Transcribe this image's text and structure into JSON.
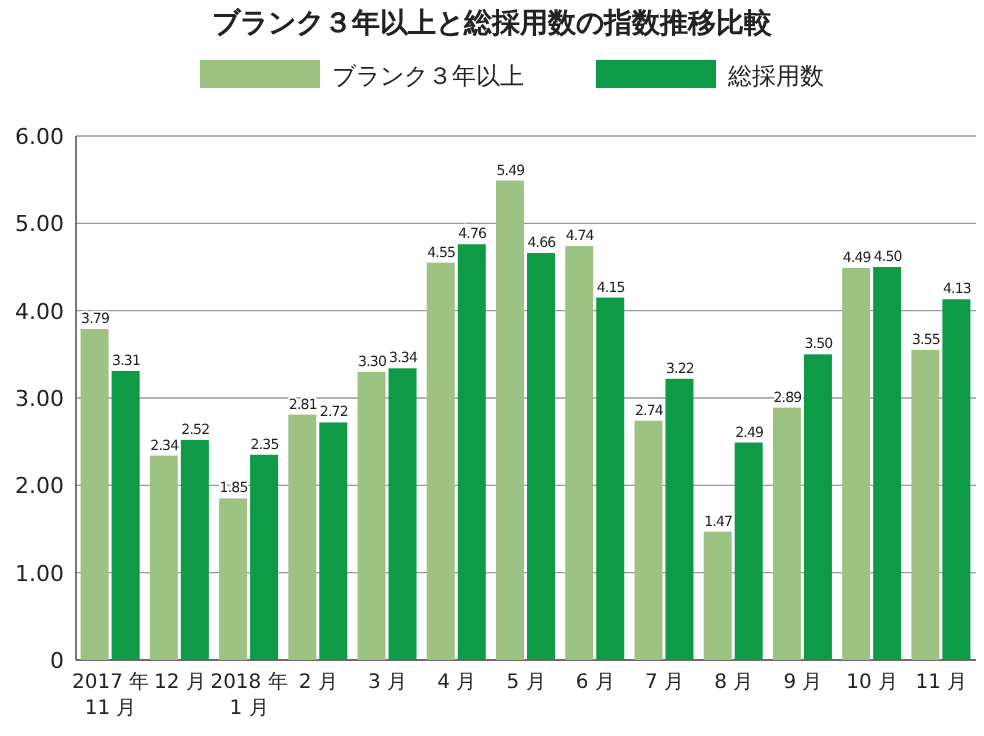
{
  "chart_data": {
    "type": "bar",
    "title": "ブランク３年以上と総採用数の指数推移比較",
    "categories": [
      "2017 年\n11 月",
      "12 月",
      "2018 年\n1 月",
      "2 月",
      "3 月",
      "4 月",
      "5 月",
      "6 月",
      "7 月",
      "8 月",
      "9 月",
      "10 月",
      "11 月"
    ],
    "series": [
      {
        "name": "ブランク３年以上",
        "color": "#9dc383",
        "values": [
          3.79,
          2.34,
          1.85,
          2.81,
          3.3,
          4.55,
          5.49,
          4.74,
          2.74,
          1.47,
          2.89,
          4.49,
          3.55
        ],
        "value_labels": [
          "3.79",
          "2.34",
          "1.85",
          "2.81",
          "3.30",
          "4.55",
          "5.49",
          "4.74",
          "2.74",
          "1.47",
          "2.89",
          "4.49",
          "3.55"
        ]
      },
      {
        "name": "総採用数",
        "color": "#0f9a47",
        "values": [
          3.31,
          2.52,
          2.35,
          2.72,
          3.34,
          4.76,
          4.66,
          4.15,
          3.22,
          2.49,
          3.5,
          4.5,
          4.13
        ],
        "value_labels": [
          "3.31",
          "2.52",
          "2.35",
          "2.72",
          "3.34",
          "4.76",
          "4.66",
          "4.15",
          "3.22",
          "2.49",
          "3.50",
          "4.50",
          "4.13"
        ]
      }
    ],
    "ylim": [
      0,
      6
    ],
    "yticks": [
      {
        "value": 0,
        "label": "0"
      },
      {
        "value": 1,
        "label": "1.00"
      },
      {
        "value": 2,
        "label": "2.00"
      },
      {
        "value": 3,
        "label": "3.00"
      },
      {
        "value": 4,
        "label": "4.00"
      },
      {
        "value": 5,
        "label": "5.00"
      },
      {
        "value": 6,
        "label": "6.00"
      }
    ],
    "grid": "y",
    "legend": "top"
  }
}
